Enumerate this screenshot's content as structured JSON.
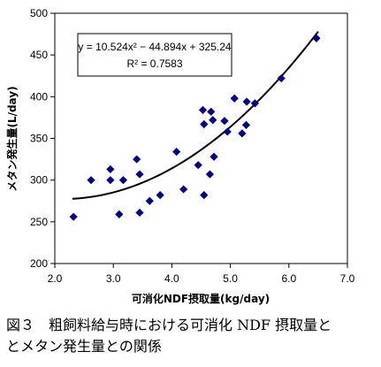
{
  "chart_data": {
    "type": "scatter",
    "xlabel": "可消化NDF摂取量(kg/day)",
    "ylabel": "メタン発生量(L/day)",
    "xlim": [
      2.0,
      7.0
    ],
    "ylim": [
      200,
      500
    ],
    "x_ticks": [
      "2.0",
      "3.0",
      "4.0",
      "5.0",
      "6.0",
      "7.0"
    ],
    "y_ticks": [
      "200",
      "250",
      "300",
      "350",
      "400",
      "450",
      "500"
    ],
    "grid": false,
    "marker": "diamond",
    "marker_color": "#000080",
    "trendline": {
      "type": "polynomial",
      "a": 10.524,
      "b": -44.894,
      "c": 325.24,
      "equation_label": "y = 10.524x² − 44.894x + 325.24",
      "r2_label": "R² = 0.7583",
      "x_range": [
        2.3,
        6.5
      ]
    },
    "points": [
      {
        "x": 2.32,
        "y": 256
      },
      {
        "x": 2.62,
        "y": 300
      },
      {
        "x": 2.95,
        "y": 313
      },
      {
        "x": 2.95,
        "y": 300
      },
      {
        "x": 3.1,
        "y": 259
      },
      {
        "x": 3.17,
        "y": 300
      },
      {
        "x": 3.4,
        "y": 325
      },
      {
        "x": 3.45,
        "y": 307
      },
      {
        "x": 3.45,
        "y": 261
      },
      {
        "x": 3.62,
        "y": 275
      },
      {
        "x": 3.8,
        "y": 282
      },
      {
        "x": 4.08,
        "y": 334
      },
      {
        "x": 4.2,
        "y": 289
      },
      {
        "x": 4.45,
        "y": 318
      },
      {
        "x": 4.53,
        "y": 384
      },
      {
        "x": 4.55,
        "y": 367
      },
      {
        "x": 4.55,
        "y": 282
      },
      {
        "x": 4.65,
        "y": 307
      },
      {
        "x": 4.67,
        "y": 382
      },
      {
        "x": 4.7,
        "y": 372
      },
      {
        "x": 4.72,
        "y": 328
      },
      {
        "x": 4.9,
        "y": 371
      },
      {
        "x": 4.95,
        "y": 358
      },
      {
        "x": 5.07,
        "y": 398
      },
      {
        "x": 5.2,
        "y": 356
      },
      {
        "x": 5.27,
        "y": 366
      },
      {
        "x": 5.28,
        "y": 394
      },
      {
        "x": 5.42,
        "y": 392
      },
      {
        "x": 5.87,
        "y": 422
      },
      {
        "x": 6.47,
        "y": 470
      }
    ]
  },
  "caption": {
    "line1": "図３　粗飼料給与時における可消化 NDF 摂取量と",
    "line2": "とメタン発生量との関係"
  }
}
